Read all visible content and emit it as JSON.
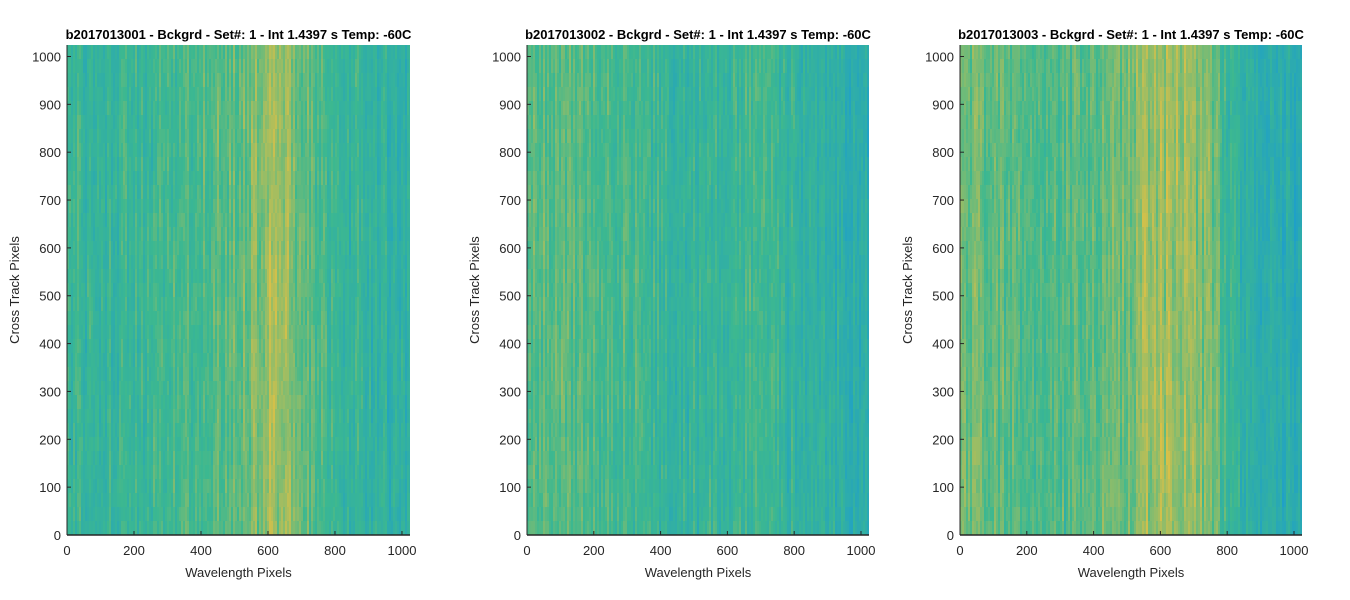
{
  "chart_data": [
    {
      "type": "heatmap",
      "title": "b2017013001 - Bckgrd - Set#: 1 - Int 1.4397 s Temp: -60C",
      "xlabel": "Wavelength Pixels",
      "ylabel": "Cross Track Pixels",
      "xlim": [
        0,
        1024
      ],
      "ylim": [
        0,
        1024
      ],
      "xticks": [
        0,
        200,
        400,
        600,
        800,
        1000
      ],
      "yticks": [
        0,
        100,
        200,
        300,
        400,
        500,
        600,
        700,
        800,
        900,
        1000
      ],
      "column_profile": {
        "x": [
          0,
          100,
          200,
          300,
          400,
          500,
          550,
          600,
          650,
          700,
          750,
          800,
          900,
          1024
        ],
        "level": [
          0.45,
          0.42,
          0.44,
          0.5,
          0.55,
          0.6,
          0.7,
          0.8,
          0.78,
          0.65,
          0.52,
          0.45,
          0.38,
          0.32
        ]
      },
      "colors": {
        "low": "#1fa0c8",
        "mid": "#3cb890",
        "high": "#d8c048"
      }
    },
    {
      "type": "heatmap",
      "title": "b2017013002 - Bckgrd - Set#: 1 - Int 1.4397 s Temp: -60C",
      "xlabel": "Wavelength Pixels",
      "ylabel": "Cross Track Pixels",
      "xlim": [
        0,
        1024
      ],
      "ylim": [
        0,
        1024
      ],
      "xticks": [
        0,
        200,
        400,
        600,
        800,
        1000
      ],
      "yticks": [
        0,
        100,
        200,
        300,
        400,
        500,
        600,
        700,
        800,
        900,
        1000
      ],
      "column_profile": {
        "x": [
          0,
          100,
          200,
          300,
          400,
          500,
          600,
          700,
          800,
          900,
          1024
        ],
        "level": [
          0.6,
          0.6,
          0.55,
          0.5,
          0.42,
          0.38,
          0.42,
          0.48,
          0.38,
          0.3,
          0.25
        ]
      },
      "colors": {
        "low": "#1fa0c8",
        "mid": "#3cb890",
        "high": "#d8c048"
      }
    },
    {
      "type": "heatmap",
      "title": "b2017013003 - Bckgrd - Set#: 1 - Int 1.4397 s Temp: -60C",
      "xlabel": "Wavelength Pixels",
      "ylabel": "Cross Track Pixels",
      "xlim": [
        0,
        1024
      ],
      "ylim": [
        0,
        1024
      ],
      "xticks": [
        0,
        200,
        400,
        600,
        800,
        1000
      ],
      "yticks": [
        0,
        100,
        200,
        300,
        400,
        500,
        600,
        700,
        800,
        900,
        1000
      ],
      "column_profile": {
        "x": [
          0,
          100,
          200,
          300,
          400,
          500,
          600,
          650,
          700,
          780,
          800,
          900,
          1024
        ],
        "level": [
          0.7,
          0.62,
          0.55,
          0.55,
          0.6,
          0.7,
          0.8,
          0.82,
          0.78,
          0.6,
          0.4,
          0.3,
          0.22
        ]
      },
      "colors": {
        "low": "#1fa0c8",
        "mid": "#3cb890",
        "high": "#d8c048"
      }
    }
  ]
}
